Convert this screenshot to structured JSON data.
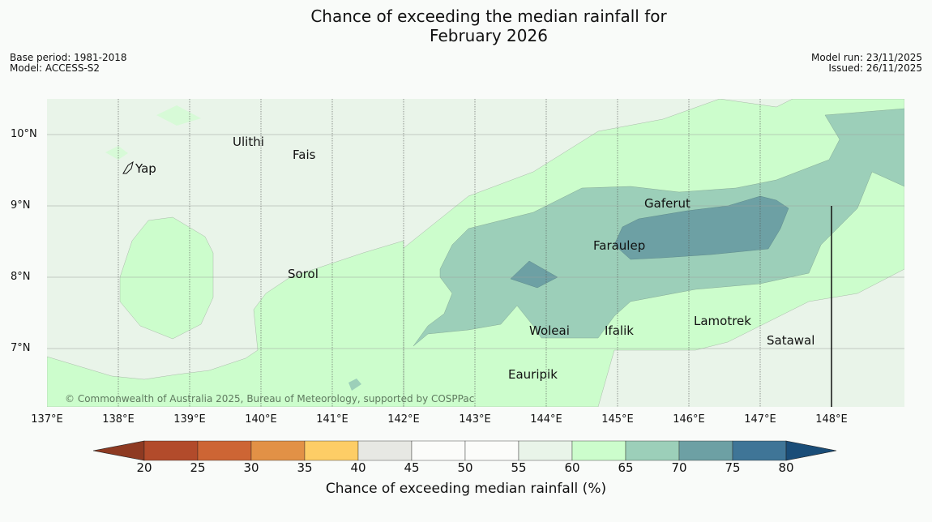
{
  "header": {
    "title_line1": "Chance of exceeding the median rainfall for",
    "title_line2": "February 2026",
    "base_period": "Base period: 1981-2018",
    "model": "Model: ACCESS-S2",
    "model_run": "Model run: 23/11/2025",
    "issued": "Issued: 26/11/2025"
  },
  "map": {
    "copyright": "© Commonwealth of Australia 2025, Bureau of Meteorology, supported by COSPPac",
    "places": [
      {
        "name": "Yap"
      },
      {
        "name": "Ulithi"
      },
      {
        "name": "Fais"
      },
      {
        "name": "Gaferut"
      },
      {
        "name": "Faraulep"
      },
      {
        "name": "Sorol"
      },
      {
        "name": "Lamotrek"
      },
      {
        "name": "Woleai"
      },
      {
        "name": "Ifalik"
      },
      {
        "name": "Satawal"
      },
      {
        "name": "Eauripik"
      }
    ],
    "lat_labels": [
      "10°N",
      "9°N",
      "8°N",
      "7°N"
    ],
    "lon_labels": [
      "137°E",
      "138°E",
      "139°E",
      "140°E",
      "141°E",
      "142°E",
      "143°E",
      "144°E",
      "145°E",
      "146°E",
      "147°E",
      "148°E"
    ]
  },
  "colorbar": {
    "label": "Chance of exceeding median rainfall (%)",
    "ticks": [
      "20",
      "25",
      "30",
      "35",
      "40",
      "45",
      "50",
      "55",
      "60",
      "65",
      "70",
      "75",
      "80"
    ],
    "under_color": "#8e3a22",
    "over_color": "#1a4d78",
    "colors": [
      "#b24b2b",
      "#cd6534",
      "#e29146",
      "#fdcd66",
      "#e7e8e3",
      "#fbfcfa",
      "#fbfcfa",
      "#e9f4e9",
      "#ccfdcc",
      "#9ccfb9",
      "#6da0a4",
      "#3f7597"
    ]
  }
}
